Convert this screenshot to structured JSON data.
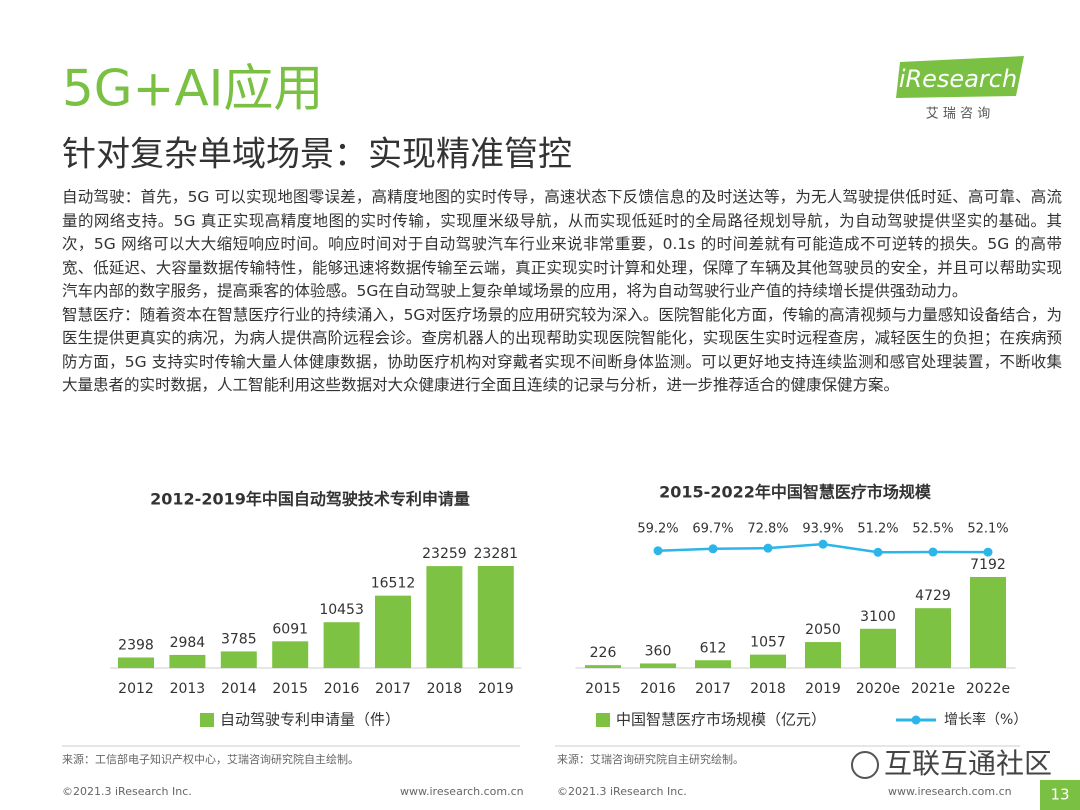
{
  "header": {
    "title": "5G+AI应用",
    "subtitle": "针对复杂单域场景：实现精准管控",
    "logo": "iResearch",
    "logo_sub": "艾 瑞 咨 询"
  },
  "paragraphs": [
    "自动驾驶：首先，5G 可以实现地图零误差，高精度地图的实时传导，高速状态下反馈信息的及时送达等，为无人驾驶提供低时延、高可靠、高流量的网络支持。5G 真正实现高精度地图的实时传输，实现厘米级导航，从而实现低延时的全局路径规划导航，为自动驾驶提供坚实的基础。其次，5G 网络可以大大缩短响应时间。响应时间对于自动驾驶汽车行业来说非常重要，0.1s 的时间差就有可能造成不可逆转的损失。5G 的高带宽、低延迟、大容量数据传输特性，能够迅速将数据传输至云端，真正实现实时计算和处理，保障了车辆及其他驾驶员的安全，并且可以帮助实现汽车内部的数字服务，提高乘客的体验感。5G在自动驾驶上复杂单域场景的应用，将为自动驾驶行业产值的持续增长提供强劲动力。",
    "智慧医疗：随着资本在智慧医疗行业的持续涌入，5G对医疗场景的应用研究较为深入。医院智能化方面，传输的高清视频与力量感知设备结合，为医生提供更真实的病况，为病人提供高阶远程会诊。查房机器人的出现帮助实现医院智能化，实现医生实时远程查房，减轻医生的负担；在疾病预防方面，5G 支持实时传输大量人体健康数据，协助医疗机构对穿戴者实现不间断身体监测。可以更好地支持连续监测和感官处理装置，不断收集大量患者的实时数据，人工智能利用这些数据对大众健康进行全面且连续的记录与分析，进一步推荐适合的健康保健方案。"
  ],
  "chart_data": [
    {
      "type": "bar",
      "title": "2012-2019年中国自动驾驶技术专利申请量",
      "categories": [
        "2012",
        "2013",
        "2014",
        "2015",
        "2016",
        "2017",
        "2018",
        "2019"
      ],
      "series": [
        {
          "name": "自动驾驶专利申请量（件）",
          "color": "#7dc243",
          "values": [
            2398,
            2984,
            3785,
            6091,
            10453,
            16512,
            23259,
            23281
          ]
        }
      ]
    },
    {
      "type": "bar_line",
      "title": "2015-2022年中国智慧医疗市场规模",
      "categories": [
        "2015",
        "2016",
        "2017",
        "2018",
        "2019",
        "2020e",
        "2021e",
        "2022e"
      ],
      "series": [
        {
          "name": "中国智慧医疗市场规模（亿元）",
          "color": "#7dc243",
          "values": [
            226,
            360,
            612,
            1057,
            2050,
            3100,
            4729,
            7192
          ]
        },
        {
          "name": "增长率（%）",
          "color": "#2cb5e9",
          "axis": "y2",
          "values": [
            null,
            59.2,
            69.7,
            72.8,
            93.9,
            51.2,
            52.5,
            52.1
          ],
          "value_labels": [
            null,
            "59.2%",
            "69.7%",
            "72.8%",
            "93.9%",
            "51.2%",
            "52.5%",
            "52.1%"
          ]
        }
      ]
    }
  ],
  "sources": [
    "来源：工信部电子知识产权中心，艾瑞咨询研究院自主绘制。",
    "来源：艾瑞咨询研究院自主研究绘制。"
  ],
  "footer": [
    {
      "copyright": "©2021.3 iResearch Inc.",
      "website": "www.iresearch.com.cn"
    },
    {
      "copyright": "©2021.3 iResearch Inc.",
      "website": "www.iresearch.com.cn"
    }
  ],
  "watermark": "互联互通社区",
  "page_number": "13"
}
